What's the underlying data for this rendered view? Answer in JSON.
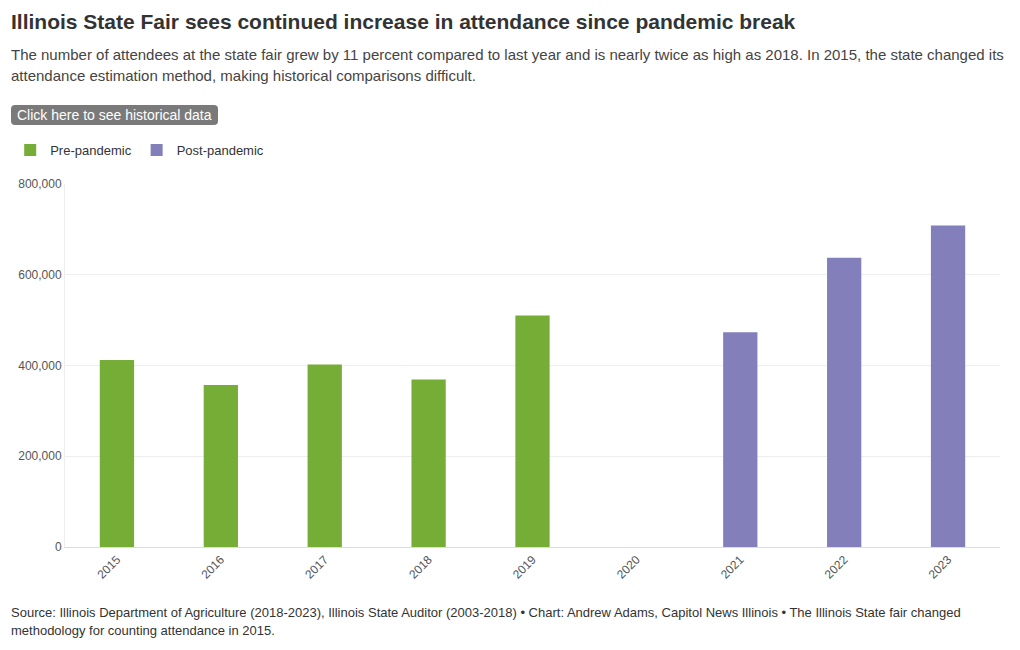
{
  "chart_data": {
    "type": "bar",
    "title": "Illinois State Fair sees continued increase in attendance since pandemic break",
    "subtitle": "The number of attendees at the state fair grew by 11 percent compared to last year and is nearly twice as high as 2018. In 2015, the state changed its attendance estimation method, making historical comparisons difficult.",
    "button": "Click here to see historical data",
    "source": "Source: Illinois Department of Agriculture (2018-2023), Illinois State Auditor (2003-2018) • Chart: Andrew Adams, Capitol News Illinois • The Illinois State fair changed methodology for counting attendance in 2015.",
    "categories": [
      "2015",
      "2016",
      "2017",
      "2018",
      "2019",
      "2020",
      "2021",
      "2022",
      "2023"
    ],
    "series": [
      {
        "name": "Pre-pandemic",
        "color": "#76ad37",
        "values": [
          412000,
          357000,
          402000,
          369000,
          510000,
          null,
          null,
          null,
          null
        ]
      },
      {
        "name": "Post-pandemic",
        "color": "#837fba",
        "values": [
          null,
          null,
          null,
          null,
          null,
          null,
          473000,
          637000,
          708000
        ]
      }
    ],
    "ylim": [
      0,
      800000
    ],
    "yticks": [
      0,
      {
        "value": 200000,
        "label": "200,000"
      },
      {
        "value": 400000,
        "label": "400,000"
      },
      {
        "value": 600000,
        "label": "600,000"
      },
      {
        "value": 800000,
        "label": "800,000"
      }
    ],
    "grid": true,
    "legend": "top-left"
  }
}
